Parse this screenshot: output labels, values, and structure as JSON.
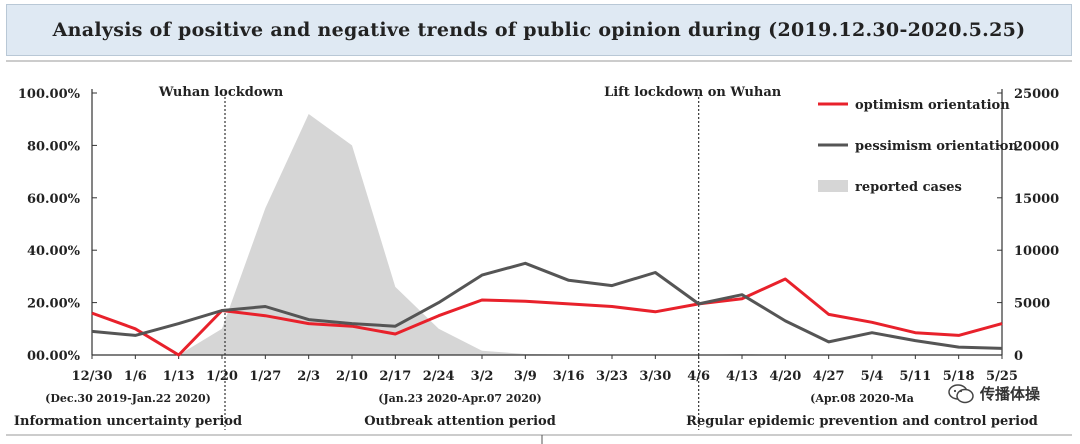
{
  "chart_data": {
    "type": "line",
    "title": "Analysis of positive and negative trends of public opinion during (2019.12.30-2020.5.25)",
    "categories": [
      "12/30",
      "1/6",
      "1/13",
      "1/20",
      "1/27",
      "2/3",
      "2/10",
      "2/17",
      "2/24",
      "3/2",
      "3/9",
      "3/16",
      "3/23",
      "3/30",
      "4/6",
      "4/13",
      "4/20",
      "4/27",
      "5/4",
      "5/11",
      "5/18",
      "5/25"
    ],
    "y_left": {
      "ylim": [
        0,
        100
      ],
      "ticks": [
        "100.00%",
        "80.00%",
        "60.00%",
        "40.00%",
        "20.00%",
        "00.00%"
      ]
    },
    "y_right": {
      "ylim": [
        0,
        25000
      ],
      "ticks": [
        "25000",
        "20000",
        "15000",
        "10000",
        "5000",
        "0"
      ]
    },
    "series": [
      {
        "name": "optimism orientation",
        "axis": "left",
        "color": "#e8212b",
        "values": [
          16,
          10,
          0,
          17,
          15,
          12,
          11,
          8,
          15,
          21,
          20.5,
          19.5,
          18.5,
          16.5,
          19.5,
          21.5,
          29,
          15.5,
          12.5,
          8.5,
          7.5,
          12
        ]
      },
      {
        "name": "pessimism orientation",
        "axis": "left",
        "color": "#555555",
        "values": [
          9,
          7.5,
          12,
          17,
          18.5,
          13.5,
          12,
          11,
          20,
          30.5,
          35,
          28.5,
          26.5,
          31.5,
          19.5,
          23,
          13,
          5,
          8.5,
          5.5,
          3,
          2.5
        ]
      },
      {
        "name": "reported cases",
        "axis": "right",
        "type": "area",
        "color": "#d6d6d6",
        "values": [
          0,
          0,
          0,
          2500,
          14000,
          23000,
          20000,
          6500,
          2500,
          400,
          100,
          50,
          50,
          50,
          0,
          100,
          0,
          0,
          0,
          0,
          0,
          0
        ]
      }
    ],
    "vlines": [
      {
        "at_category": "1/20",
        "label": "Wuhan lockdown"
      },
      {
        "at_category": "4/6",
        "label": "Lift lockdown on Wuhan"
      }
    ],
    "periods": [
      {
        "dates": "(Dec.30 2019-Jan.22 2020)",
        "name": "Information uncertainty period"
      },
      {
        "dates": "(Jan.23 2020-Apr.07 2020)",
        "name": "Outbreak attention period"
      },
      {
        "dates": "(Apr.08 2020-Ma",
        "name": "Regular epidemic prevention and control period"
      }
    ],
    "legend_position": "top-right"
  },
  "watermark": {
    "text": "传播体操"
  }
}
